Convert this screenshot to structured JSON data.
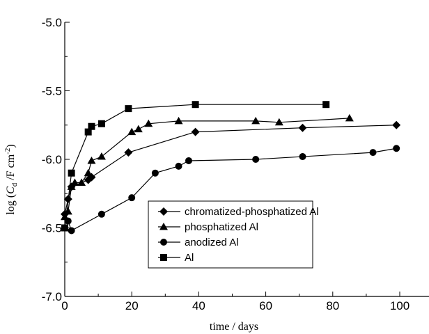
{
  "chart_data": {
    "type": "line",
    "title": "",
    "xlabel": "time / days",
    "ylabel": {
      "prefix": "log (",
      "c": "C",
      "sub": "d",
      "middle": " /F cm",
      "sup": "-2",
      "suffix": ")"
    },
    "xlim": [
      0,
      108
    ],
    "ylim": [
      -7.0,
      -5.0
    ],
    "xticks": [
      0,
      20,
      40,
      60,
      80,
      100
    ],
    "xtick_labels": [
      "0",
      "20",
      "40",
      "60",
      "80",
      "100"
    ],
    "yticks": [
      -7.0,
      -6.5,
      -6.0,
      -5.5,
      -5.0
    ],
    "ytick_labels": [
      "-7.0",
      "-6.5",
      "-6.0",
      "-5.5",
      "-5.0"
    ],
    "grid": false,
    "legend_position": "bottom-center",
    "series": [
      {
        "name": "chromatized-phosphatized Al",
        "marker": "diamond",
        "x": [
          0,
          1,
          2,
          7,
          8,
          19,
          39,
          71,
          99
        ],
        "y": [
          -6.4,
          -6.29,
          -6.2,
          -6.15,
          -6.13,
          -5.95,
          -5.8,
          -5.77,
          -5.75
        ]
      },
      {
        "name": "phosphatized Al",
        "marker": "triangle",
        "x": [
          0,
          1,
          2,
          3,
          5,
          7,
          8,
          11,
          20,
          22,
          25,
          34,
          57,
          64,
          85
        ],
        "y": [
          -6.42,
          -6.38,
          -6.2,
          -6.17,
          -6.17,
          -6.1,
          -6.01,
          -5.98,
          -5.8,
          -5.78,
          -5.74,
          -5.72,
          -5.72,
          -5.73,
          -5.7
        ]
      },
      {
        "name": "anodized Al",
        "marker": "circle",
        "x": [
          1,
          2,
          11,
          20,
          27,
          34,
          37,
          57,
          71,
          92,
          99
        ],
        "y": [
          -6.45,
          -6.52,
          -6.4,
          -6.28,
          -6.1,
          -6.05,
          -6.01,
          -6.0,
          -5.98,
          -5.95,
          -5.92
        ]
      },
      {
        "name": "Al",
        "marker": "square",
        "x": [
          0,
          2,
          7,
          8,
          11,
          19,
          39,
          78
        ],
        "y": [
          -6.5,
          -6.1,
          -5.8,
          -5.76,
          -5.74,
          -5.63,
          -5.6,
          -5.6
        ]
      }
    ]
  }
}
